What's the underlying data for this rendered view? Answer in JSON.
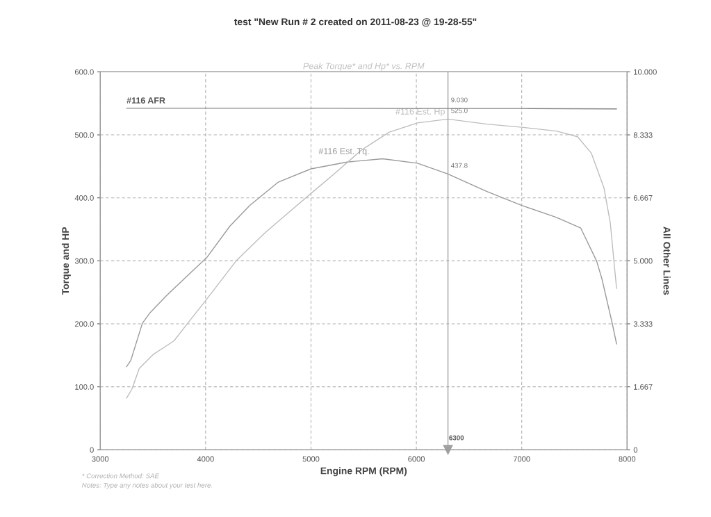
{
  "chart_data": {
    "type": "line",
    "title": "test \"New Run # 2 created on 2011-08-23 @ 19-28-55\"",
    "subtitle": "Peak Torque* and Hp* vs. RPM",
    "xlabel": "Engine RPM (RPM)",
    "ylabel": "Torque and HP",
    "y2label": "All Other Lines",
    "xlim": [
      3000,
      8000
    ],
    "xticks": [
      3000,
      4000,
      5000,
      6000,
      7000,
      8000
    ],
    "ylim": [
      0,
      600
    ],
    "yticks": [
      0,
      {
        "value": 100,
        "label": "100.0"
      },
      {
        "value": 200,
        "label": "200.0"
      },
      {
        "value": 300,
        "label": "300.0"
      },
      {
        "value": 400,
        "label": "400.0"
      },
      {
        "value": 500,
        "label": "500.0"
      },
      {
        "value": 600,
        "label": "600.0"
      }
    ],
    "y2lim": [
      0,
      10
    ],
    "y2ticks": [
      0,
      1.667,
      3.333,
      {
        "value": 5,
        "label": "5.000"
      },
      6.667,
      8.333,
      {
        "value": 10,
        "label": "10.000"
      }
    ],
    "grid": true,
    "line_style": "solid",
    "marker": "none",
    "series": [
      {
        "name": "#116 AFR",
        "color": "#808080",
        "axis": "y2",
        "x": [
          3250,
          4000,
          5000,
          6000,
          6300,
          7000,
          7900
        ],
        "values": [
          9.04,
          9.04,
          9.04,
          9.03,
          9.03,
          9.03,
          9.02
        ],
        "value_labels": [
          null,
          null,
          null,
          null,
          "9.030",
          null,
          null
        ]
      },
      {
        "name": "#116 Est. Tq.",
        "color": "#9a9a9a",
        "x": [
          3250,
          3290,
          3400,
          3470,
          3630,
          3800,
          4010,
          4230,
          4420,
          4690,
          5000,
          5350,
          5680,
          6010,
          6300,
          6670,
          7000,
          7330,
          7560,
          7710,
          7760,
          7860,
          7900
        ],
        "values": [
          132,
          142,
          201,
          217,
          245,
          272,
          305,
          355,
          388,
          425,
          446,
          457,
          462,
          455,
          437.8,
          410,
          388,
          369,
          352,
          300,
          272,
          200,
          168
        ],
        "value_labels": [
          null,
          null,
          null,
          null,
          null,
          null,
          null,
          null,
          null,
          null,
          null,
          null,
          null,
          null,
          "437.8",
          null,
          null,
          null,
          null,
          null,
          null,
          null,
          null
        ]
      },
      {
        "name": "#116 Est. Hp",
        "color": "#bdbdbd",
        "x": [
          3250,
          3300,
          3370,
          3500,
          3700,
          3830,
          4010,
          4290,
          4560,
          4790,
          5000,
          5220,
          5480,
          5740,
          6010,
          6300,
          6670,
          7000,
          7330,
          7530,
          7660,
          7780,
          7840,
          7900
        ],
        "values": [
          82,
          96,
          129,
          151,
          173,
          201,
          239,
          300,
          344,
          377,
          407,
          438,
          476,
          504,
          519,
          525.0,
          517,
          512,
          506,
          497,
          471,
          416,
          361,
          256
        ],
        "value_labels": [
          null,
          null,
          null,
          null,
          null,
          null,
          null,
          null,
          null,
          null,
          null,
          null,
          null,
          null,
          null,
          "525.0",
          null,
          null,
          null,
          null,
          null,
          null,
          null,
          null
        ]
      }
    ],
    "ref_lines": [
      {
        "axis": "x",
        "value": 6300,
        "label": "6300",
        "color": "#a0a0a0"
      }
    ],
    "annotations": [
      "* Correction Method: SAE",
      "Notes: Type any notes about your test here."
    ]
  }
}
